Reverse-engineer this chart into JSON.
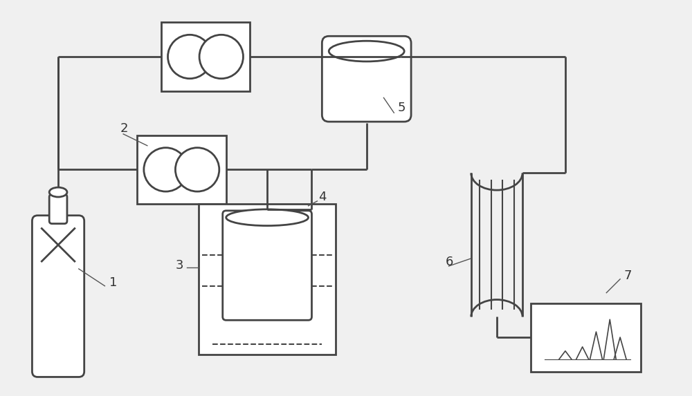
{
  "background_color": "#f0f0f0",
  "line_color": "#444444",
  "line_width": 2.0,
  "label_fontsize": 13,
  "fig_width": 10.0,
  "fig_height": 5.73
}
